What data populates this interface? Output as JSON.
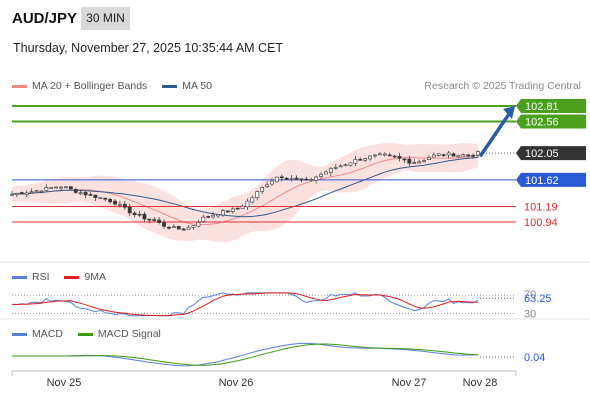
{
  "header": {
    "symbol": "AUD/JPY",
    "timeframe": "30 MIN",
    "datetime": "Thursday, November 27, 2025 10:35:44 AM CET",
    "research": "Research © 2025 Trading Central"
  },
  "legend": {
    "ma20_label": "MA 20 + Bollinger Bands",
    "ma20_color": "#f08a8a",
    "ma50_label": "MA 50",
    "ma50_color": "#2c5a8c"
  },
  "rsi_panel": {
    "rsi_label": "RSI",
    "rsi_color": "#5b7fd6",
    "ma9_label": "9MA",
    "ma9_color": "#e11d1d",
    "value_label": "63.25",
    "level_70": "70",
    "level_30": "30"
  },
  "macd_panel": {
    "macd_label": "MACD",
    "macd_color": "#5b7fd6",
    "signal_label": "MACD Signal",
    "signal_color": "#3b9a12",
    "value_label": "0.04"
  },
  "chart_data": {
    "type": "candlestick",
    "x_ticks": [
      "Nov 25",
      "Nov 26",
      "Nov 27",
      "Nov 28"
    ],
    "price_range": [
      100.5,
      102.9
    ],
    "current_price": 102.05,
    "levels": [
      {
        "value": 102.81,
        "label": "102.81",
        "kind": "resistance",
        "color": "#4aa01c"
      },
      {
        "value": 102.56,
        "label": "102.56",
        "kind": "resistance",
        "color": "#4aa01c"
      },
      {
        "value": 102.05,
        "label": "102.05",
        "kind": "last",
        "color": "#333333"
      },
      {
        "value": 101.62,
        "label": "101.62",
        "kind": "pivot",
        "color": "#2a5bd7"
      },
      {
        "value": 101.19,
        "label": "101.19",
        "kind": "support",
        "color": "#e03030"
      },
      {
        "value": 100.94,
        "label": "100.94",
        "kind": "support",
        "color": "#e03030"
      }
    ],
    "close_path": [
      101.39,
      101.41,
      101.43,
      101.46,
      101.49,
      101.52,
      101.48,
      101.42,
      101.38,
      101.34,
      101.3,
      101.24,
      101.14,
      101.05,
      101.0,
      100.96,
      100.88,
      100.84,
      100.82,
      100.88,
      101.0,
      101.05,
      101.1,
      101.12,
      101.18,
      101.3,
      101.45,
      101.58,
      101.68,
      101.66,
      101.62,
      101.6,
      101.67,
      101.75,
      101.82,
      101.87,
      101.93,
      101.97,
      102.0,
      102.02,
      101.99,
      101.95,
      101.9,
      101.92,
      102.0,
      102.03,
      102.03,
      102.02,
      102.02,
      102.05
    ],
    "rsi": {
      "value": 63.25,
      "levels": [
        70,
        30
      ]
    },
    "macd": {
      "value": 0.04
    }
  }
}
